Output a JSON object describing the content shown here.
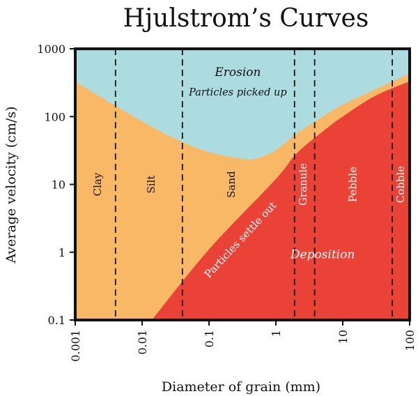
{
  "chart_data": {
    "type": "area",
    "title": "Hjulstrom’s Curves",
    "xlabel": "Diameter of grain (mm)",
    "ylabel": "Average velocity (cm/s)",
    "x_scale": "log",
    "y_scale": "log",
    "xlim": [
      0.001,
      100
    ],
    "ylim": [
      0.1,
      1000
    ],
    "x_ticks": [
      "0.001",
      "0.01",
      "0.1",
      "1",
      "10",
      "100"
    ],
    "y_ticks": [
      "0.1",
      "1",
      "10",
      "100",
      "1000"
    ],
    "colors": {
      "erosion": "#addce0",
      "transport": "#f8b866",
      "deposition": "#ea4236",
      "frame": "#111111"
    },
    "series": [
      {
        "name": "Erosion",
        "x": [
          0.001,
          0.003,
          0.01,
          0.03,
          0.1,
          0.3,
          0.5,
          1,
          2,
          5,
          10,
          30,
          100
        ],
        "y": [
          330,
          170,
          85,
          48,
          30,
          24,
          24,
          32,
          55,
          100,
          150,
          250,
          430
        ]
      },
      {
        "name": "Deposition",
        "x": [
          0.014,
          0.1,
          1,
          2,
          5,
          10,
          30,
          100
        ],
        "y": [
          0.1,
          1.1,
          12,
          28,
          60,
          100,
          200,
          330
        ]
      }
    ],
    "class_boundaries": [
      0.004,
      0.04,
      1.9,
      3.8,
      55
    ],
    "class_labels": [
      {
        "label": "Clay",
        "x": 0.0022,
        "y": 10
      },
      {
        "label": "Silt",
        "x": 0.014,
        "y": 10
      },
      {
        "label": "Sand",
        "x": 0.22,
        "y": 10
      },
      {
        "label": "Granule",
        "x": 2.6,
        "y": 10,
        "color": "#ffffff"
      },
      {
        "label": "Pebble",
        "x": 14.5,
        "y": 10,
        "color": "#ffffff"
      },
      {
        "label": "Cobble",
        "x": 75,
        "y": 10,
        "color": "#ffffff"
      }
    ],
    "annotations": [
      {
        "text": "Erosion",
        "x": 0.27,
        "y": 440,
        "size": 17,
        "italic": true,
        "color": "#111111"
      },
      {
        "text": "Particles picked up",
        "x": 0.27,
        "y": 225,
        "size": 14.5,
        "italic": true,
        "color": "#111111"
      },
      {
        "text": "Deposition",
        "x": 5,
        "y": 0.9,
        "size": 17,
        "italic": true,
        "color": "#ffffff"
      },
      {
        "text": "Particles settle out",
        "x": 0.3,
        "y": 1.5,
        "size": 14.5,
        "rotate": -47,
        "color": "#ffffff"
      }
    ]
  }
}
